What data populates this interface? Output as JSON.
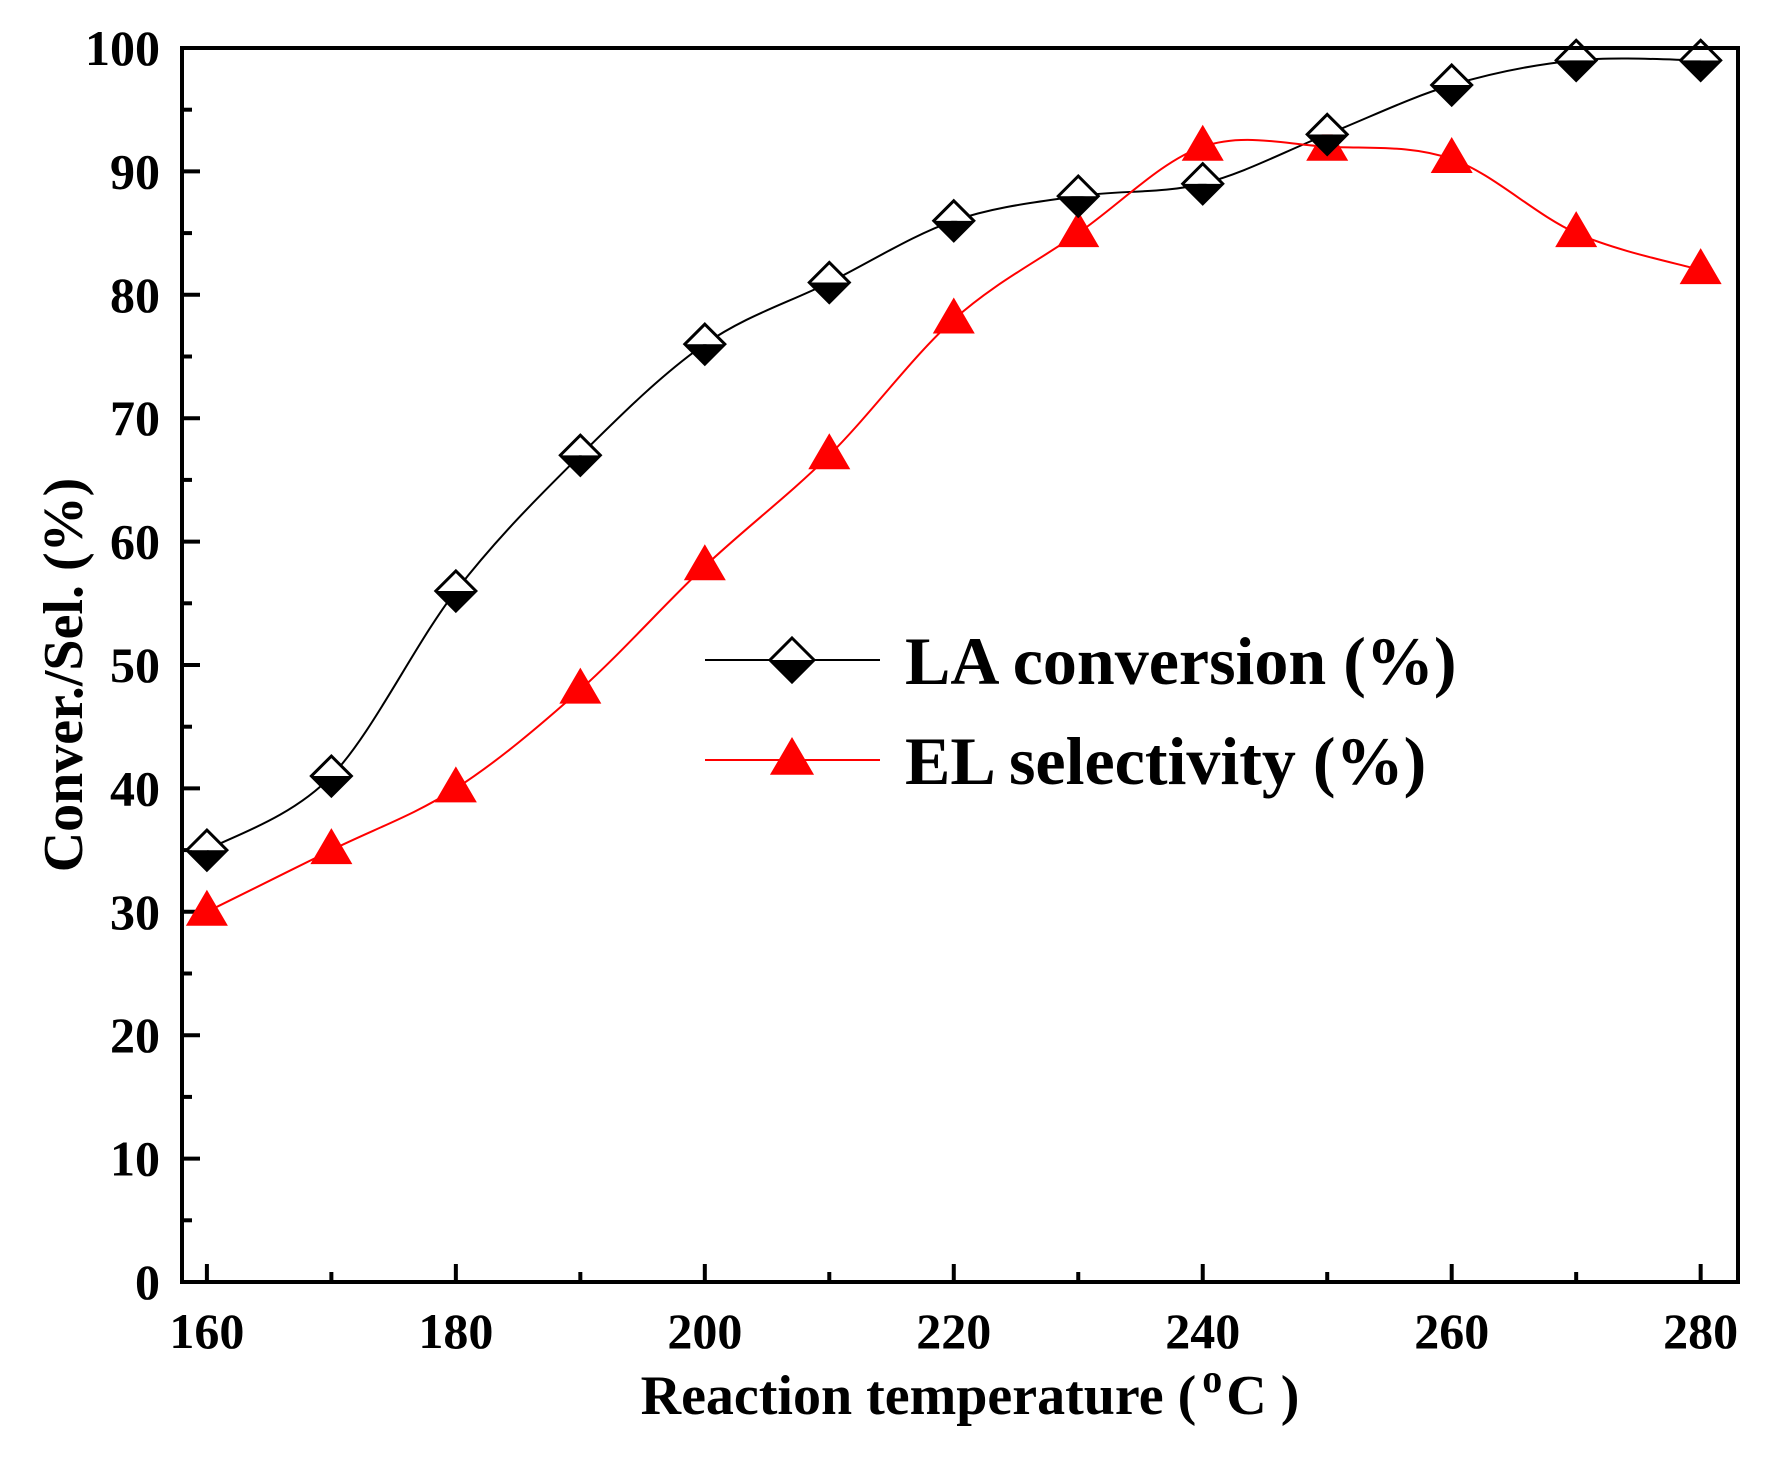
{
  "chart_data": {
    "type": "line",
    "title": "",
    "xlabel_main": "Reaction temperature (",
    "xlabel_sup": "o",
    "xlabel_unit": "C )",
    "ylabel": "Conver./Sel. (%)",
    "xlim": [
      158,
      283
    ],
    "ylim": [
      0,
      100
    ],
    "x_ticks": [
      160,
      180,
      200,
      220,
      240,
      260,
      280
    ],
    "y_ticks": [
      0,
      10,
      20,
      30,
      40,
      50,
      60,
      70,
      80,
      90,
      100
    ],
    "legend_position": "center-right",
    "x": [
      160,
      170,
      180,
      190,
      200,
      210,
      220,
      230,
      240,
      250,
      260,
      270,
      280
    ],
    "series": [
      {
        "name": "LA conversion (%)",
        "marker": "half-filled-diamond",
        "color": "#000000",
        "values": [
          35,
          41,
          56,
          67,
          76,
          81,
          86,
          88,
          89,
          93,
          97,
          99,
          99
        ]
      },
      {
        "name": "EL selectivity (%)",
        "marker": "triangle",
        "color": "#ff0000",
        "values": [
          30,
          35,
          40,
          48,
          58,
          67,
          78,
          85,
          92,
          92,
          91,
          85,
          82
        ]
      }
    ]
  }
}
